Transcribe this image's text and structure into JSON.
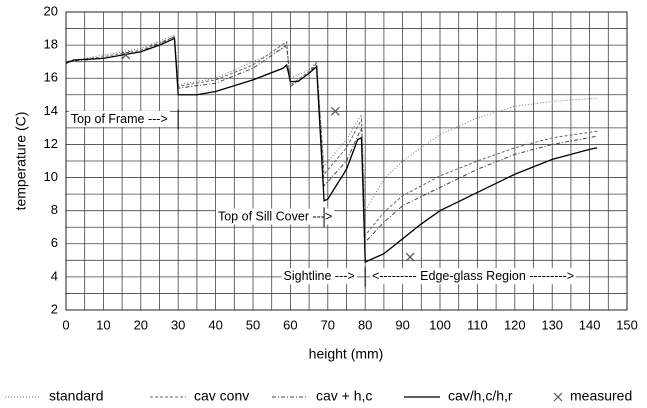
{
  "chart_data": {
    "type": "line",
    "xlabel": "height (mm)",
    "ylabel": "temperature (C)",
    "xlim": [
      0,
      150
    ],
    "xticks": [
      0,
      10,
      20,
      30,
      40,
      50,
      60,
      70,
      80,
      90,
      100,
      110,
      120,
      130,
      140,
      150
    ],
    "ylim": [
      2,
      20
    ],
    "yticks": [
      2,
      4,
      6,
      8,
      10,
      12,
      14,
      16,
      18,
      20
    ],
    "grid": true,
    "legend": "bottom",
    "series": [
      {
        "name": "standard",
        "color": "#777777",
        "dash": "1,2",
        "x": [
          0,
          10,
          20,
          29,
          30,
          40,
          50,
          59,
          60,
          65,
          67,
          69,
          75,
          79,
          80,
          85,
          90,
          100,
          110,
          120,
          130,
          142
        ],
        "values": [
          17,
          17.4,
          17.8,
          18.6,
          15.6,
          16.0,
          17.0,
          17.9,
          16.0,
          16.5,
          17.0,
          10.7,
          12.3,
          13.8,
          8.0,
          9.9,
          11.0,
          12.6,
          13.6,
          14.3,
          14.6,
          14.8
        ]
      },
      {
        "name": "cav conv",
        "color": "#666666",
        "dash": "3,2",
        "x": [
          0,
          10,
          20,
          29,
          30,
          40,
          50,
          59,
          60,
          65,
          67,
          69,
          75,
          79,
          80,
          85,
          90,
          100,
          110,
          120,
          130,
          142
        ],
        "values": [
          17,
          17.3,
          17.7,
          18.5,
          15.5,
          15.9,
          16.8,
          18.2,
          15.6,
          16.4,
          16.9,
          10.2,
          11.8,
          13.5,
          6.5,
          7.9,
          8.9,
          10.1,
          11.0,
          11.8,
          12.4,
          12.8
        ]
      },
      {
        "name": "cav + h,c",
        "color": "#444444",
        "dash": "4,2,1,2",
        "x": [
          0,
          10,
          20,
          29,
          30,
          40,
          50,
          59,
          60,
          65,
          67,
          69,
          75,
          79,
          80,
          85,
          90,
          100,
          110,
          120,
          130,
          142
        ],
        "values": [
          17,
          17.2,
          17.6,
          18.5,
          15.4,
          15.7,
          16.6,
          18.0,
          15.5,
          16.3,
          16.8,
          9.5,
          11.0,
          13.0,
          6.1,
          7.3,
          8.3,
          9.4,
          10.5,
          11.4,
          12.0,
          12.5
        ]
      },
      {
        "name": "cav/h,c/h,r",
        "color": "#000000",
        "dash": "none",
        "x": [
          0,
          2,
          10,
          20,
          25,
          29,
          30,
          35,
          40,
          50,
          58,
          59,
          60,
          62,
          65,
          67,
          69,
          70,
          75,
          78,
          79,
          80,
          85,
          90,
          95,
          100,
          110,
          120,
          130,
          140,
          142
        ],
        "values": [
          16.9,
          17.1,
          17.2,
          17.6,
          18.0,
          18.4,
          15.0,
          15.0,
          15.2,
          15.9,
          16.6,
          16.8,
          15.8,
          15.8,
          16.3,
          16.7,
          8.6,
          8.7,
          10.5,
          12.3,
          12.4,
          4.9,
          5.4,
          6.3,
          7.2,
          8.0,
          9.1,
          10.2,
          11.1,
          11.7,
          11.8
        ]
      },
      {
        "name": "measured",
        "color": "#555555",
        "marker": "x",
        "x": [
          16,
          72,
          92
        ],
        "values": [
          17.4,
          14.0,
          5.2
        ]
      }
    ],
    "annotations": [
      {
        "text": "Top of Frame --->"
      },
      {
        "text": "Top of Sill Cover --->"
      },
      {
        "text": "Sightline --->"
      },
      {
        "text": "<--------- Edge-glass Region --------->"
      }
    ]
  }
}
